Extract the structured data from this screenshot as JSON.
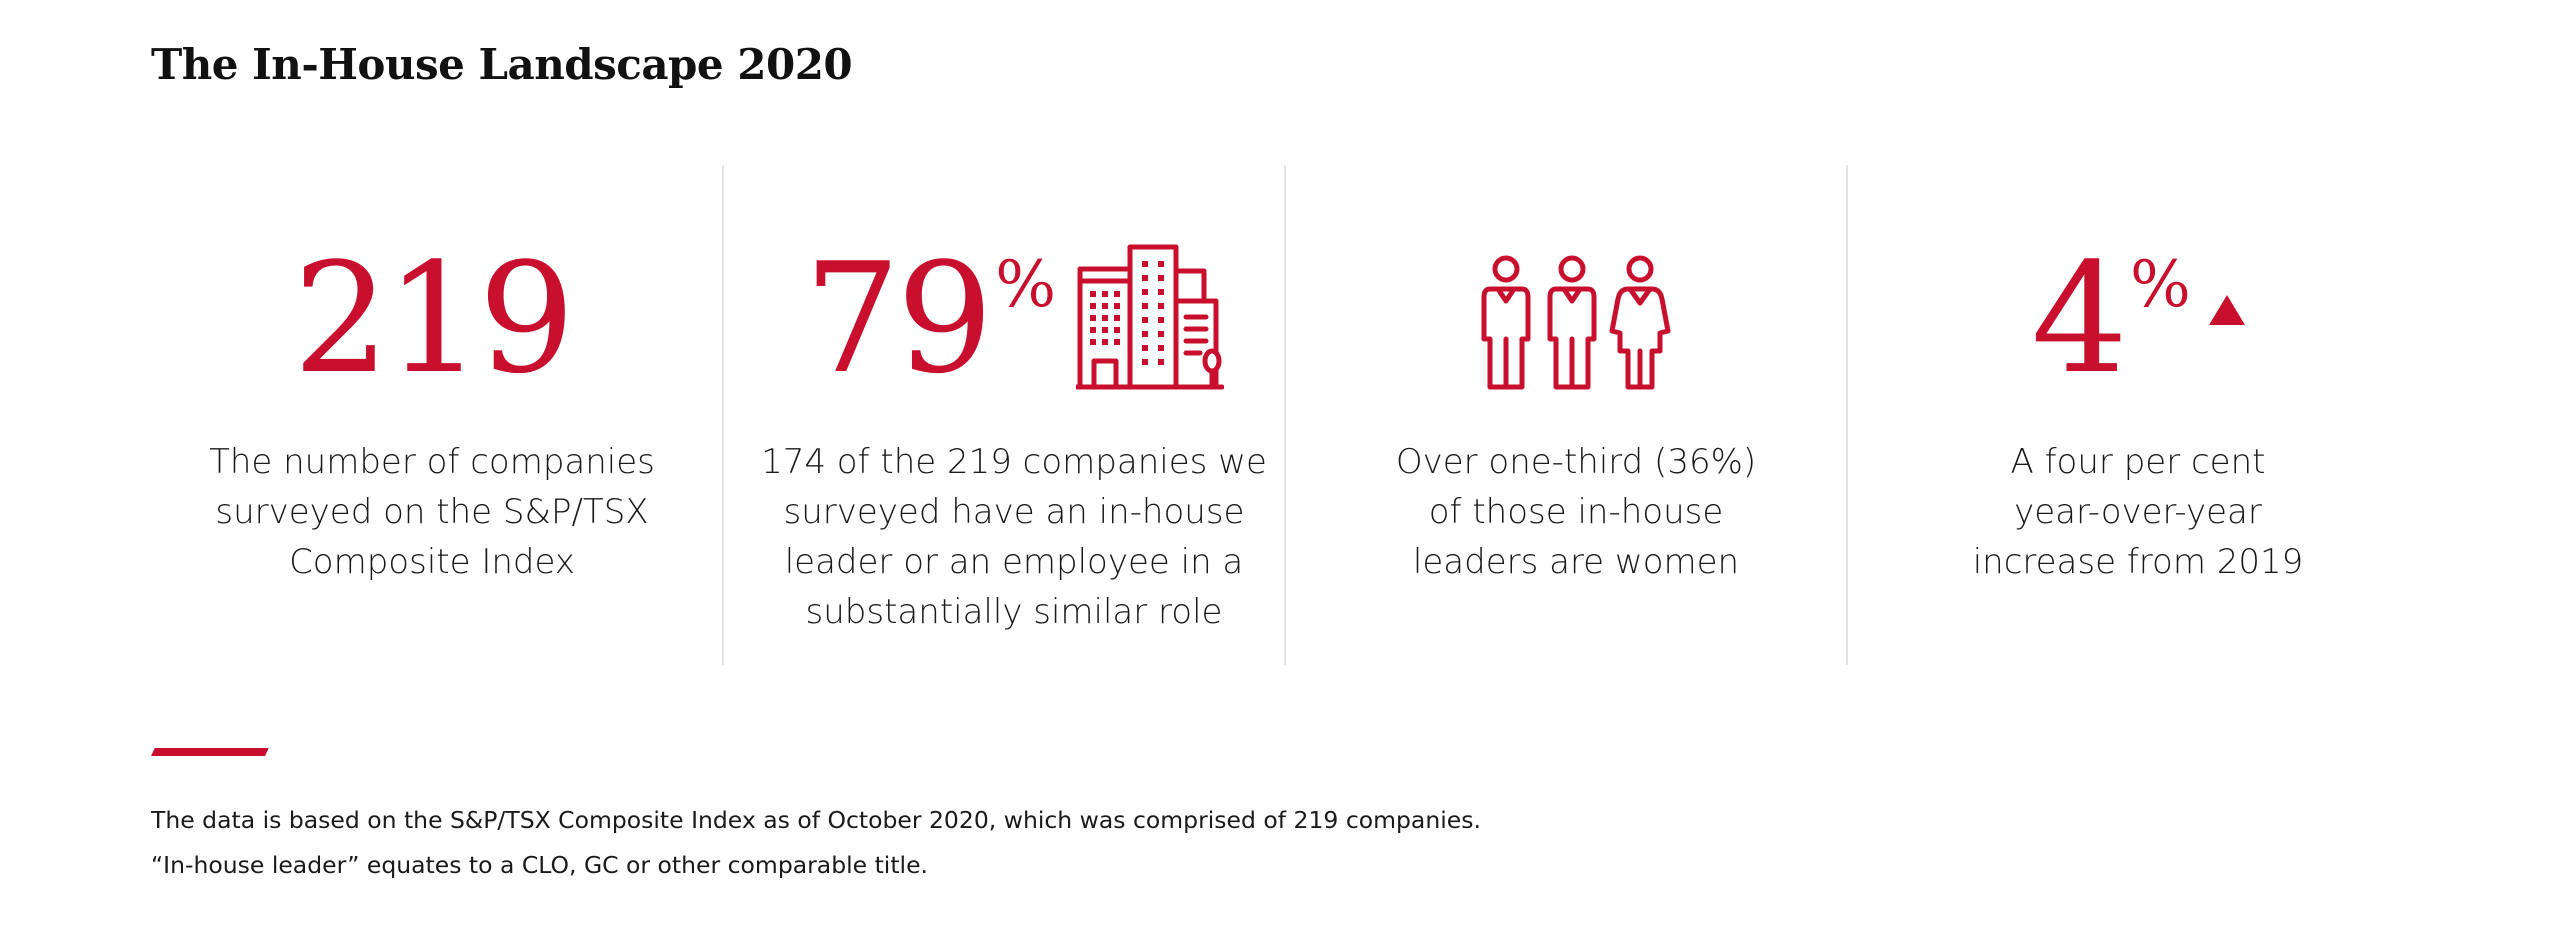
{
  "title": "The In-House Landscape 2020",
  "accent_color": "#c8102e",
  "stats": [
    {
      "value": "219",
      "suffix": "",
      "icon": "",
      "description_lines": [
        "The number of companies",
        "surveyed on the S&P/TSX",
        "Composite Index"
      ]
    },
    {
      "value": "79",
      "suffix": "%",
      "icon": "office-buildings-icon",
      "description_lines": [
        "174 of the 219 companies we",
        "surveyed have an in-house",
        "leader or an employee in a",
        "substantially similar role"
      ]
    },
    {
      "value": "",
      "suffix": "",
      "icon": "two-men-one-woman-icon",
      "description_lines": [
        "Over one-third (36%)",
        "of those in-house",
        "leaders are women"
      ]
    },
    {
      "value": "4",
      "suffix": "%",
      "icon": "up-triangle-icon",
      "description_lines": [
        "A four per cent",
        "year-over-year",
        "increase from 2019"
      ]
    }
  ],
  "footnotes": [
    "The data is based on the S&P/TSX Composite Index as of October 2020, which was comprised of 219 companies.",
    "“In-house leader” equates to a CLO, GC or other comparable title."
  ]
}
